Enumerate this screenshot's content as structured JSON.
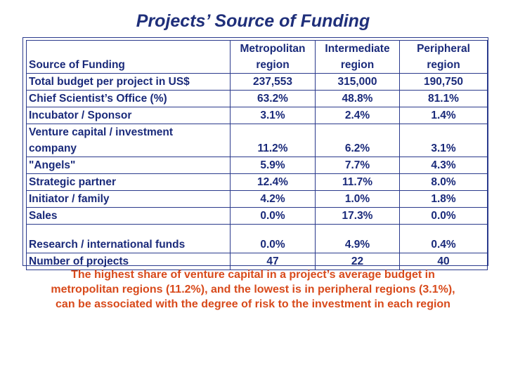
{
  "title": "Projects’ Source of Funding",
  "table": {
    "header": {
      "label": "Source of Funding",
      "columns": [
        {
          "line1": "Metropolitan",
          "line2": "region"
        },
        {
          "line1": "Intermediate",
          "line2": "region"
        },
        {
          "line1": "Peripheral",
          "line2": "region"
        }
      ]
    },
    "rows": [
      {
        "label": "Total budget per project in US$",
        "values": [
          "237,553",
          "315,000",
          "190,750"
        ]
      },
      {
        "label": "Chief Scientist’s Office (%)",
        "values": [
          "63.2%",
          "48.8%",
          "81.1%"
        ]
      },
      {
        "label": "Incubator / Sponsor",
        "values": [
          "3.1%",
          "2.4%",
          "1.4%"
        ]
      },
      {
        "label_line1": "Venture capital / investment",
        "label_line2": "company",
        "values": [
          "11.2%",
          "6.2%",
          "3.1%"
        ]
      },
      {
        "label": "\"Angels\"",
        "values": [
          "5.9%",
          "7.7%",
          "4.3%"
        ]
      },
      {
        "label": "Strategic partner",
        "values": [
          "12.4%",
          "11.7%",
          "8.0%"
        ]
      },
      {
        "label": "Initiator / family",
        "values": [
          "4.2%",
          "1.0%",
          "1.8%"
        ]
      },
      {
        "label": "Sales",
        "values": [
          "0.0%",
          "17.3%",
          "0.0%"
        ]
      },
      {
        "label": "Research / international funds",
        "values": [
          "0.0%",
          "4.9%",
          "0.4%"
        ]
      },
      {
        "label": "Number of projects",
        "values": [
          "47",
          "22",
          "40"
        ]
      }
    ]
  },
  "note": "The highest share of venture capital in a project’s average budget in metropolitan regions (11.2%), and the lowest is in peripheral regions (3.1%), can be associated with the degree of risk to the investment in each region",
  "colors": {
    "title": "#1f2f7a",
    "table_text": "#1a2a7a",
    "note": "#d84a1b"
  }
}
